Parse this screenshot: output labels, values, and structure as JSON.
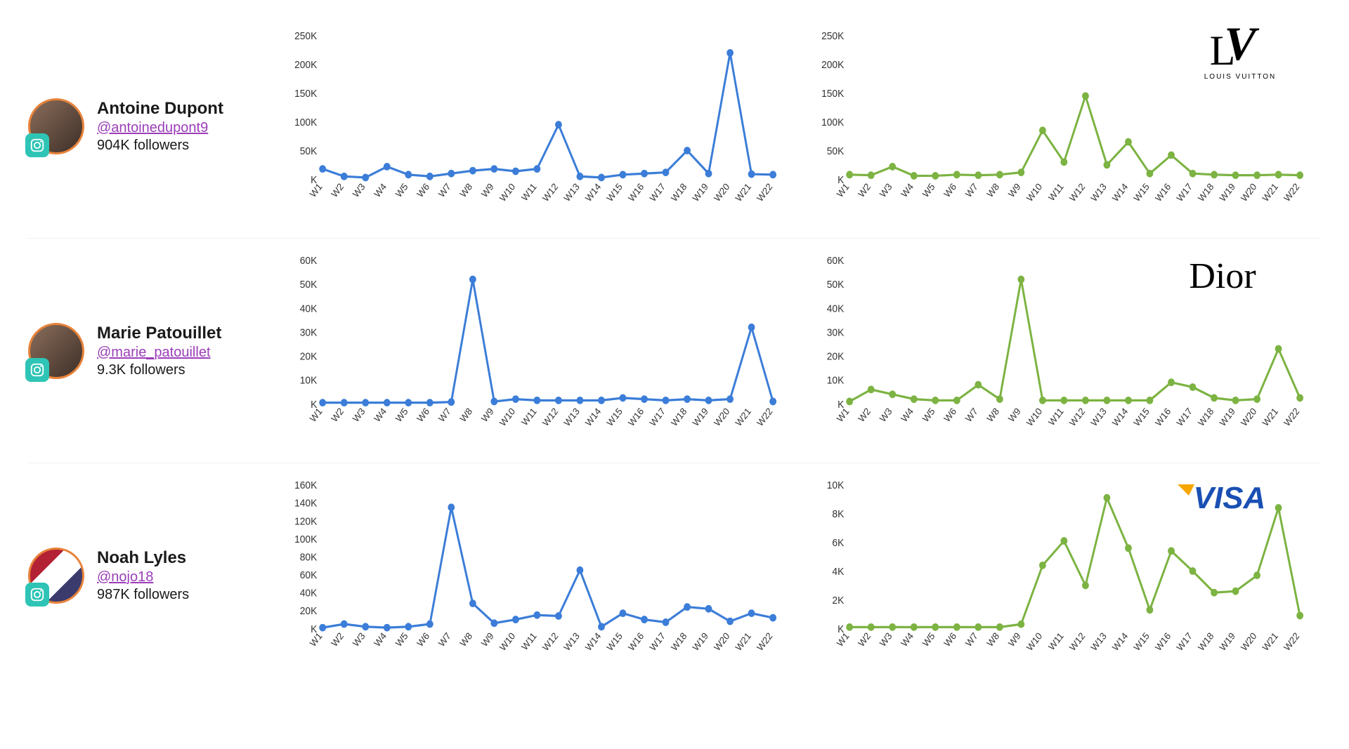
{
  "categories": [
    "W1",
    "W2",
    "W3",
    "W4",
    "W5",
    "W6",
    "W7",
    "W8",
    "W9",
    "W10",
    "W11",
    "W12",
    "W13",
    "W14",
    "W15",
    "W16",
    "W17",
    "W18",
    "W19",
    "W20",
    "W21",
    "W22"
  ],
  "colors": {
    "blue_line": "#3b7dd8",
    "green_line": "#7cb342",
    "marker_stroke": "#2a5fa8",
    "green_marker_stroke": "#5a8a2f",
    "axis_text": "#333333",
    "handle": "#9b3db8",
    "avatar_ring": "#e8833a",
    "ig_badge": "#2ec4b6"
  },
  "rows": [
    {
      "name": "Antoine Dupont",
      "handle": "@antoinedupont9",
      "followers": "904K followers",
      "avatar_class": "",
      "brand": "LV",
      "chart_left": {
        "type": "line",
        "color": "#3b7dd8",
        "ylim": [
          0,
          250000
        ],
        "yticks": [
          0,
          50000,
          100000,
          150000,
          200000,
          250000
        ],
        "ytick_labels": [
          "K",
          "50K",
          "100K",
          "150K",
          "200K",
          "250K"
        ],
        "values": [
          18000,
          5000,
          3000,
          22000,
          8000,
          5000,
          10000,
          15000,
          18000,
          14000,
          18000,
          95000,
          5000,
          3000,
          8000,
          10000,
          12000,
          50000,
          10000,
          220000,
          9000,
          8000
        ],
        "marker_radius": 5,
        "line_width": 3,
        "tick_fontsize": 14
      },
      "chart_right": {
        "type": "line",
        "color": "#7cb342",
        "ylim": [
          0,
          250000
        ],
        "yticks": [
          0,
          50000,
          100000,
          150000,
          200000,
          250000
        ],
        "ytick_labels": [
          "K",
          "50K",
          "100K",
          "150K",
          "200K",
          "250K"
        ],
        "values": [
          8000,
          7000,
          22000,
          6000,
          6000,
          8000,
          7000,
          8000,
          12000,
          85000,
          30000,
          145000,
          25000,
          65000,
          10000,
          42000,
          10000,
          8000,
          7000,
          7000,
          8000,
          7000
        ],
        "marker_radius": 5,
        "line_width": 3,
        "tick_fontsize": 14
      }
    },
    {
      "name": "Marie Patouillet",
      "handle": "@marie_patouillet",
      "followers": "9.3K followers",
      "avatar_class": "",
      "brand": "Dior",
      "chart_left": {
        "type": "line",
        "color": "#3b7dd8",
        "ylim": [
          0,
          60000
        ],
        "yticks": [
          0,
          10000,
          20000,
          30000,
          40000,
          50000,
          60000
        ],
        "ytick_labels": [
          "K",
          "10K",
          "20K",
          "30K",
          "40K",
          "50K",
          "60K"
        ],
        "values": [
          500,
          500,
          500,
          500,
          500,
          500,
          800,
          52000,
          1000,
          2000,
          1500,
          1500,
          1500,
          1500,
          2500,
          2000,
          1500,
          2000,
          1500,
          2000,
          32000,
          1000
        ],
        "marker_radius": 5,
        "line_width": 3,
        "tick_fontsize": 14
      },
      "chart_right": {
        "type": "line",
        "color": "#7cb342",
        "ylim": [
          0,
          60000
        ],
        "yticks": [
          0,
          10000,
          20000,
          30000,
          40000,
          50000,
          60000
        ],
        "ytick_labels": [
          "K",
          "10K",
          "20K",
          "30K",
          "40K",
          "50K",
          "60K"
        ],
        "values": [
          1000,
          6000,
          4000,
          2000,
          1500,
          1500,
          8000,
          2000,
          52000,
          1500,
          1500,
          1500,
          1500,
          1500,
          1500,
          9000,
          7000,
          2500,
          1500,
          2000,
          23000,
          2500
        ],
        "marker_radius": 5,
        "line_width": 3,
        "tick_fontsize": 14
      }
    },
    {
      "name": "Noah Lyles",
      "handle": "@nojo18",
      "followers": "987K followers",
      "avatar_class": "usa",
      "brand": "VISA",
      "chart_left": {
        "type": "line",
        "color": "#3b7dd8",
        "ylim": [
          0,
          160000
        ],
        "yticks": [
          0,
          20000,
          40000,
          60000,
          80000,
          100000,
          120000,
          140000,
          160000
        ],
        "ytick_labels": [
          "K",
          "20K",
          "40K",
          "60K",
          "80K",
          "100K",
          "120K",
          "140K",
          "160K"
        ],
        "values": [
          1000,
          5000,
          2000,
          1000,
          2000,
          5000,
          135000,
          28000,
          6000,
          10000,
          15000,
          14000,
          65000,
          2000,
          17000,
          10000,
          7000,
          24000,
          22000,
          8000,
          17000,
          12000
        ],
        "marker_radius": 5,
        "line_width": 3,
        "tick_fontsize": 14
      },
      "chart_right": {
        "type": "line",
        "color": "#7cb342",
        "ylim": [
          0,
          10000
        ],
        "yticks": [
          0,
          2000,
          4000,
          6000,
          8000,
          10000
        ],
        "ytick_labels": [
          "K",
          "2K",
          "4K",
          "6K",
          "8K",
          "10K"
        ],
        "values": [
          100,
          100,
          100,
          100,
          100,
          100,
          100,
          100,
          300,
          4400,
          6100,
          3000,
          9100,
          5600,
          1300,
          5400,
          4000,
          2500,
          2600,
          3700,
          8400,
          900
        ],
        "marker_radius": 5,
        "line_width": 3,
        "tick_fontsize": 14
      }
    }
  ]
}
